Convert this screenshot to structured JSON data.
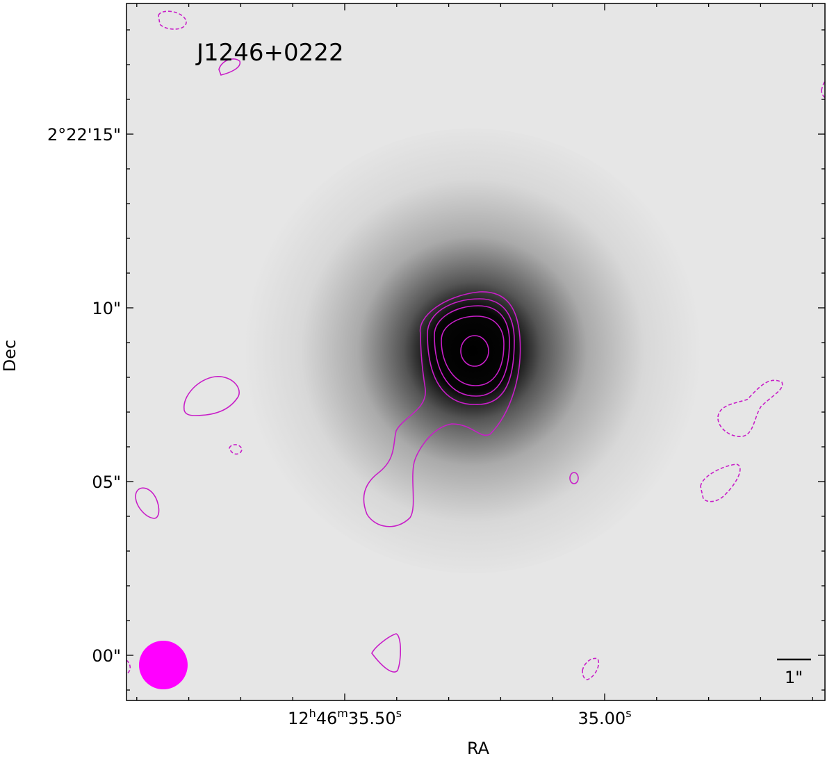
{
  "title": "J1246+0222",
  "x_axis": {
    "label": "RA",
    "ticks": [
      [
        "12",
        "h",
        "46",
        "m",
        "35.50",
        "s"
      ],
      [
        "35.00",
        "s"
      ]
    ]
  },
  "y_axis": {
    "label": "Dec",
    "ticks": [
      "2°22'15\"",
      "10\"",
      "05\"",
      "00\""
    ]
  },
  "scale_bar": "1\""
}
